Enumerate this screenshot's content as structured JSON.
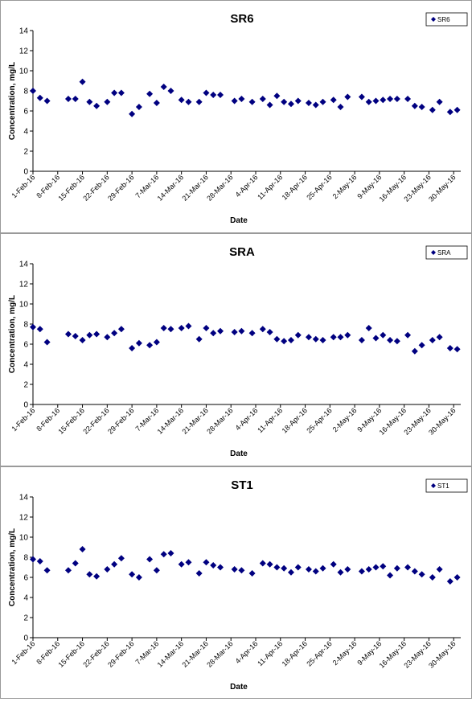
{
  "chart_data": [
    {
      "type": "scatter",
      "title": "SR6",
      "xlabel": "Date",
      "ylabel": "Concentration, mg/L",
      "xlim": [
        "2016-02-01",
        "2016-06-01"
      ],
      "xticks": [
        {
          "value": "2016-02-01",
          "label": "1-Feb-16"
        },
        {
          "value": "2016-02-08",
          "label": "8-Feb-16"
        },
        {
          "value": "2016-02-15",
          "label": "15-Feb-16"
        },
        {
          "value": "2016-02-22",
          "label": "22-Feb-16"
        },
        {
          "value": "2016-02-29",
          "label": "29-Feb-16"
        },
        {
          "value": "2016-03-07",
          "label": "7-Mar-16"
        },
        {
          "value": "2016-03-14",
          "label": "14-Mar-16"
        },
        {
          "value": "2016-03-21",
          "label": "21-Mar-16"
        },
        {
          "value": "2016-03-28",
          "label": "28-Mar-16"
        },
        {
          "value": "2016-04-04",
          "label": "4-Apr-16"
        },
        {
          "value": "2016-04-11",
          "label": "11-Apr-16"
        },
        {
          "value": "2016-04-18",
          "label": "18-Apr-16"
        },
        {
          "value": "2016-04-25",
          "label": "25-Apr-16"
        },
        {
          "value": "2016-05-02",
          "label": "2-May-16"
        },
        {
          "value": "2016-05-09",
          "label": "9-May-16"
        },
        {
          "value": "2016-05-16",
          "label": "16-May-16"
        },
        {
          "value": "2016-05-23",
          "label": "23-May-16"
        },
        {
          "value": "2016-05-30",
          "label": "30-May-16"
        }
      ],
      "ylim": [
        0,
        14
      ],
      "yticks": [
        0,
        2,
        4,
        6,
        8,
        10,
        12,
        14
      ],
      "legend": "top-right",
      "series": [
        {
          "name": "SR6",
          "color": "#000080",
          "x": [
            "2016-02-01",
            "2016-02-03",
            "2016-02-05",
            "2016-02-11",
            "2016-02-13",
            "2016-02-15",
            "2016-02-17",
            "2016-02-19",
            "2016-02-22",
            "2016-02-24",
            "2016-02-26",
            "2016-02-29",
            "2016-03-02",
            "2016-03-05",
            "2016-03-07",
            "2016-03-09",
            "2016-03-11",
            "2016-03-14",
            "2016-03-16",
            "2016-03-19",
            "2016-03-21",
            "2016-03-23",
            "2016-03-25",
            "2016-03-29",
            "2016-03-31",
            "2016-04-03",
            "2016-04-06",
            "2016-04-08",
            "2016-04-10",
            "2016-04-12",
            "2016-04-14",
            "2016-04-16",
            "2016-04-19",
            "2016-04-21",
            "2016-04-23",
            "2016-04-26",
            "2016-04-28",
            "2016-04-30",
            "2016-05-04",
            "2016-05-06",
            "2016-05-08",
            "2016-05-10",
            "2016-05-12",
            "2016-05-14",
            "2016-05-17",
            "2016-05-19",
            "2016-05-21",
            "2016-05-24",
            "2016-05-26",
            "2016-05-29",
            "2016-05-31"
          ],
          "values": [
            8.0,
            7.3,
            7.0,
            7.2,
            7.2,
            8.9,
            6.9,
            6.5,
            6.9,
            7.8,
            7.8,
            5.7,
            6.4,
            7.7,
            6.8,
            8.4,
            8.0,
            7.1,
            6.9,
            6.9,
            7.8,
            7.6,
            7.6,
            7.0,
            7.2,
            6.9,
            7.2,
            6.6,
            7.5,
            6.9,
            6.7,
            7.0,
            6.8,
            6.6,
            6.9,
            7.1,
            6.4,
            7.4,
            7.4,
            6.9,
            7.0,
            7.1,
            7.2,
            7.2,
            7.2,
            6.5,
            6.4,
            6.1,
            6.9,
            5.9,
            6.1
          ]
        }
      ]
    },
    {
      "type": "scatter",
      "title": "SRA",
      "xlabel": "Date",
      "ylabel": "Concentration, mg/L",
      "xlim": [
        "2016-02-01",
        "2016-06-01"
      ],
      "xticks": [
        {
          "value": "2016-02-01",
          "label": "1-Feb-16"
        },
        {
          "value": "2016-02-08",
          "label": "8-Feb-16"
        },
        {
          "value": "2016-02-15",
          "label": "15-Feb-16"
        },
        {
          "value": "2016-02-22",
          "label": "22-Feb-16"
        },
        {
          "value": "2016-02-29",
          "label": "29-Feb-16"
        },
        {
          "value": "2016-03-07",
          "label": "7-Mar-16"
        },
        {
          "value": "2016-03-14",
          "label": "14-Mar-16"
        },
        {
          "value": "2016-03-21",
          "label": "21-Mar-16"
        },
        {
          "value": "2016-03-28",
          "label": "28-Mar-16"
        },
        {
          "value": "2016-04-04",
          "label": "4-Apr-16"
        },
        {
          "value": "2016-04-11",
          "label": "11-Apr-16"
        },
        {
          "value": "2016-04-18",
          "label": "18-Apr-16"
        },
        {
          "value": "2016-04-25",
          "label": "25-Apr-16"
        },
        {
          "value": "2016-05-02",
          "label": "2-May-16"
        },
        {
          "value": "2016-05-09",
          "label": "9-May-16"
        },
        {
          "value": "2016-05-16",
          "label": "16-May-16"
        },
        {
          "value": "2016-05-23",
          "label": "23-May-16"
        },
        {
          "value": "2016-05-30",
          "label": "30-May-16"
        }
      ],
      "ylim": [
        0,
        14
      ],
      "yticks": [
        0,
        2,
        4,
        6,
        8,
        10,
        12,
        14
      ],
      "legend": "top-right",
      "series": [
        {
          "name": "SRA",
          "color": "#000080",
          "x": [
            "2016-02-01",
            "2016-02-03",
            "2016-02-05",
            "2016-02-11",
            "2016-02-13",
            "2016-02-15",
            "2016-02-17",
            "2016-02-19",
            "2016-02-22",
            "2016-02-24",
            "2016-02-26",
            "2016-02-29",
            "2016-03-02",
            "2016-03-05",
            "2016-03-07",
            "2016-03-09",
            "2016-03-11",
            "2016-03-14",
            "2016-03-16",
            "2016-03-19",
            "2016-03-21",
            "2016-03-23",
            "2016-03-25",
            "2016-03-29",
            "2016-03-31",
            "2016-04-03",
            "2016-04-06",
            "2016-04-08",
            "2016-04-10",
            "2016-04-12",
            "2016-04-14",
            "2016-04-16",
            "2016-04-19",
            "2016-04-21",
            "2016-04-23",
            "2016-04-26",
            "2016-04-28",
            "2016-04-30",
            "2016-05-04",
            "2016-05-06",
            "2016-05-08",
            "2016-05-10",
            "2016-05-12",
            "2016-05-14",
            "2016-05-17",
            "2016-05-19",
            "2016-05-21",
            "2016-05-24",
            "2016-05-26",
            "2016-05-29",
            "2016-05-31"
          ],
          "values": [
            7.7,
            7.5,
            6.2,
            7.0,
            6.8,
            6.4,
            6.9,
            7.0,
            6.7,
            7.1,
            7.5,
            5.6,
            6.1,
            5.9,
            6.2,
            7.6,
            7.5,
            7.6,
            7.8,
            6.5,
            7.6,
            7.1,
            7.3,
            7.2,
            7.3,
            7.1,
            7.5,
            7.2,
            6.5,
            6.3,
            6.4,
            6.9,
            6.7,
            6.5,
            6.4,
            6.7,
            6.7,
            6.9,
            6.4,
            7.6,
            6.6,
            6.9,
            6.4,
            6.3,
            6.9,
            5.3,
            5.9,
            6.4,
            6.7,
            5.6,
            5.5
          ]
        }
      ]
    },
    {
      "type": "scatter",
      "title": "ST1",
      "xlabel": "Date",
      "ylabel": "Concentration, mg/L",
      "xlim": [
        "2016-02-01",
        "2016-06-01"
      ],
      "xticks": [
        {
          "value": "2016-02-01",
          "label": "1-Feb-16"
        },
        {
          "value": "2016-02-08",
          "label": "8-Feb-16"
        },
        {
          "value": "2016-02-15",
          "label": "15-Feb-16"
        },
        {
          "value": "2016-02-22",
          "label": "22-Feb-16"
        },
        {
          "value": "2016-02-29",
          "label": "29-Feb-16"
        },
        {
          "value": "2016-03-07",
          "label": "7-Mar-16"
        },
        {
          "value": "2016-03-14",
          "label": "14-Mar-16"
        },
        {
          "value": "2016-03-21",
          "label": "21-Mar-16"
        },
        {
          "value": "2016-03-28",
          "label": "28-Mar-16"
        },
        {
          "value": "2016-04-04",
          "label": "4-Apr-16"
        },
        {
          "value": "2016-04-11",
          "label": "11-Apr-16"
        },
        {
          "value": "2016-04-18",
          "label": "18-Apr-16"
        },
        {
          "value": "2016-04-25",
          "label": "25-Apr-16"
        },
        {
          "value": "2016-05-02",
          "label": "2-May-16"
        },
        {
          "value": "2016-05-09",
          "label": "9-May-16"
        },
        {
          "value": "2016-05-16",
          "label": "16-May-16"
        },
        {
          "value": "2016-05-23",
          "label": "23-May-16"
        },
        {
          "value": "2016-05-30",
          "label": "30-May-16"
        }
      ],
      "ylim": [
        0,
        14
      ],
      "yticks": [
        0,
        2,
        4,
        6,
        8,
        10,
        12,
        14
      ],
      "legend": "top-right",
      "series": [
        {
          "name": "ST1",
          "color": "#000080",
          "x": [
            "2016-02-01",
            "2016-02-03",
            "2016-02-05",
            "2016-02-11",
            "2016-02-13",
            "2016-02-15",
            "2016-02-17",
            "2016-02-19",
            "2016-02-22",
            "2016-02-24",
            "2016-02-26",
            "2016-02-29",
            "2016-03-02",
            "2016-03-05",
            "2016-03-07",
            "2016-03-09",
            "2016-03-11",
            "2016-03-14",
            "2016-03-16",
            "2016-03-19",
            "2016-03-21",
            "2016-03-23",
            "2016-03-25",
            "2016-03-29",
            "2016-03-31",
            "2016-04-03",
            "2016-04-06",
            "2016-04-08",
            "2016-04-10",
            "2016-04-12",
            "2016-04-14",
            "2016-04-16",
            "2016-04-19",
            "2016-04-21",
            "2016-04-23",
            "2016-04-26",
            "2016-04-28",
            "2016-04-30",
            "2016-05-04",
            "2016-05-06",
            "2016-05-08",
            "2016-05-10",
            "2016-05-12",
            "2016-05-14",
            "2016-05-17",
            "2016-05-19",
            "2016-05-21",
            "2016-05-24",
            "2016-05-26",
            "2016-05-29",
            "2016-05-31"
          ],
          "values": [
            7.8,
            7.6,
            6.7,
            6.7,
            7.4,
            8.8,
            6.3,
            6.1,
            6.8,
            7.3,
            7.9,
            6.3,
            6.0,
            7.8,
            6.7,
            8.3,
            8.4,
            7.3,
            7.5,
            6.4,
            7.5,
            7.2,
            7.0,
            6.8,
            6.7,
            6.4,
            7.4,
            7.3,
            7.0,
            6.9,
            6.5,
            7.0,
            6.8,
            6.6,
            6.9,
            7.3,
            6.5,
            6.8,
            6.6,
            6.8,
            7.0,
            7.1,
            6.2,
            6.9,
            7.0,
            6.6,
            6.3,
            6.0,
            6.8,
            5.6,
            6.0
          ]
        }
      ]
    }
  ]
}
